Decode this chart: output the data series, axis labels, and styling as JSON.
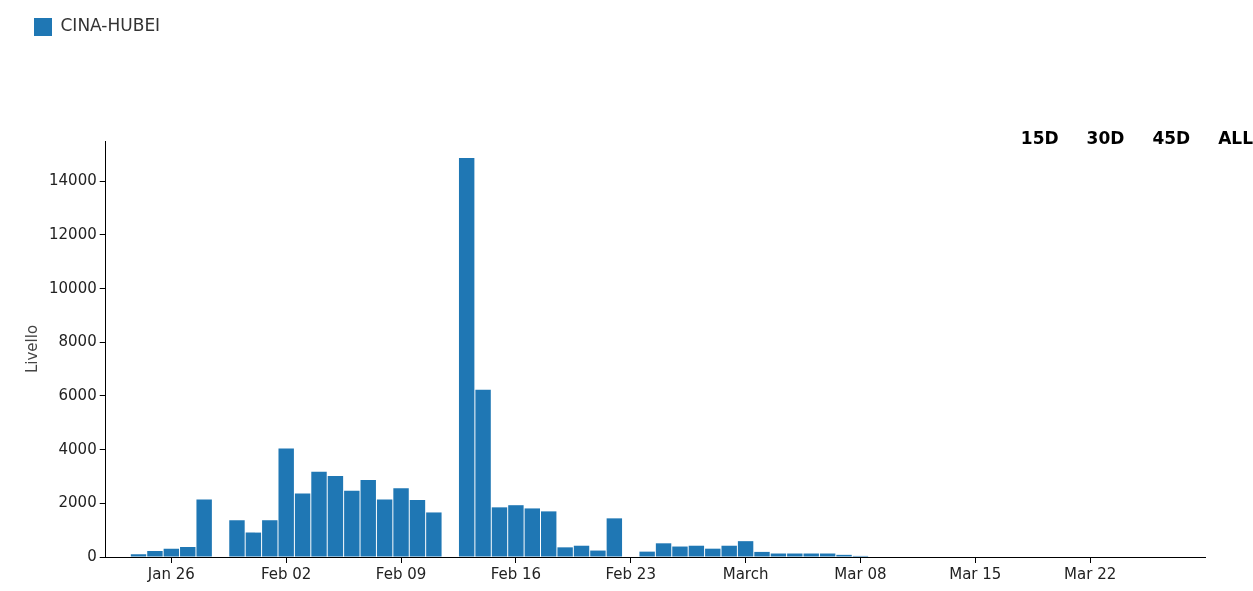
{
  "chart_data": {
    "type": "bar",
    "ylabel": "Livello",
    "annotations": [
      "15D",
      "30D",
      "45D",
      "ALL"
    ],
    "x": [
      "--01-24",
      "--01-25",
      "--01-26",
      "--01-27",
      "--01-28",
      "--01-29",
      "--01-30",
      "--01-31",
      "--02-01",
      "--02-02",
      "--02-03",
      "--02-04",
      "--02-05",
      "--02-06",
      "--02-07",
      "--02-08",
      "--02-09",
      "--02-10",
      "--02-11",
      "--02-12",
      "--02-13",
      "--02-14",
      "--02-15",
      "--02-16",
      "--02-17",
      "--02-18",
      "--02-19",
      "--02-20",
      "--02-21",
      "--02-22",
      "--02-23",
      "--02-24",
      "--02-25",
      "--02-26",
      "--02-27",
      "--02-28",
      "--02-29",
      "--03-01",
      "--03-02",
      "--03-03",
      "--03-04",
      "--03-05",
      "--03-06",
      "--03-07",
      "--03-08"
    ],
    "series": [
      {
        "name": "CINA-HUBEI",
        "color": "#1f77b4",
        "values": [
          100,
          220,
          310,
          370,
          2140,
          null,
          1370,
          910,
          1370,
          4040,
          2370,
          3180,
          3020,
          2470,
          2870,
          2140,
          2560,
          2120,
          1660,
          null,
          14870,
          6230,
          1850,
          1930,
          1810,
          1700,
          360,
          420,
          240,
          1440,
          null,
          200,
          510,
          390,
          420,
          310,
          420,
          590,
          190,
          130,
          130,
          130,
          130,
          80,
          40
        ]
      }
    ],
    "xlim": [
      "--01-22",
      "--03-29"
    ],
    "xticks": [
      {
        "value": "--01-26",
        "label": "Jan 26"
      },
      {
        "value": "--02-02",
        "label": "Feb 02"
      },
      {
        "value": "--02-09",
        "label": "Feb 09"
      },
      {
        "value": "--02-16",
        "label": "Feb 16"
      },
      {
        "value": "--02-23",
        "label": "Feb 23"
      },
      {
        "value": "--03-01",
        "label": "March"
      },
      {
        "value": "--03-08",
        "label": "Mar 08"
      },
      {
        "value": "--03-15",
        "label": "Mar 15"
      },
      {
        "value": "--03-22",
        "label": "Mar 22"
      }
    ],
    "ylim": [
      0,
      15500
    ],
    "yticks": [
      0,
      2000,
      4000,
      6000,
      8000,
      10000,
      12000,
      14000
    ],
    "grid": false,
    "legend": "top left"
  }
}
